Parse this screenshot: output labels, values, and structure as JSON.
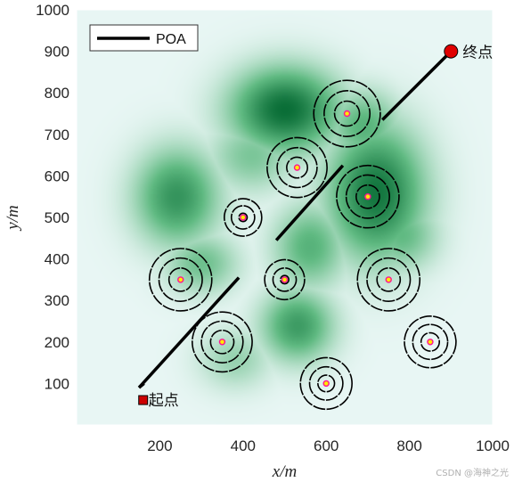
{
  "chart_data": {
    "type": "line",
    "xlabel": "x/m",
    "ylabel": "y/m",
    "xlim": [
      0,
      1000
    ],
    "ylim": [
      0,
      1000
    ],
    "x_ticks": [
      200,
      400,
      600,
      800,
      1000
    ],
    "y_ticks": [
      100,
      200,
      300,
      400,
      500,
      600,
      700,
      800,
      900,
      1000
    ],
    "grid": false,
    "legend_position": "top-left",
    "series": [
      {
        "name": "POA",
        "color": "#000000",
        "segments": [
          [
            [
              150,
              90
            ],
            [
              162,
              100
            ]
          ],
          [
            [
              150,
              90
            ],
            [
              390,
              355
            ]
          ],
          [
            [
              480,
              445
            ],
            [
              640,
              625
            ]
          ],
          [
            [
              735,
              735
            ],
            [
              900,
              900
            ]
          ]
        ]
      }
    ],
    "start": {
      "x": 160,
      "y": 60,
      "label": "起点",
      "color": "#cc0000",
      "marker": "square"
    },
    "end": {
      "x": 900,
      "y": 900,
      "label": "终点",
      "color": "#e00000",
      "marker": "circle"
    },
    "obstacles": [
      {
        "x": 650,
        "y": 750,
        "rings": [
          30,
          55,
          80
        ]
      },
      {
        "x": 530,
        "y": 620,
        "rings": [
          25,
          48,
          72
        ]
      },
      {
        "x": 700,
        "y": 550,
        "rings": [
          28,
          52,
          75
        ]
      },
      {
        "x": 400,
        "y": 500,
        "rings": [
          10,
          28,
          45
        ]
      },
      {
        "x": 250,
        "y": 350,
        "rings": [
          28,
          52,
          75
        ]
      },
      {
        "x": 500,
        "y": 350,
        "rings": [
          10,
          28,
          48
        ]
      },
      {
        "x": 750,
        "y": 350,
        "rings": [
          28,
          52,
          75
        ]
      },
      {
        "x": 350,
        "y": 200,
        "rings": [
          28,
          50,
          72
        ]
      },
      {
        "x": 850,
        "y": 200,
        "rings": [
          22,
          42,
          62
        ]
      },
      {
        "x": 600,
        "y": 100,
        "rings": [
          20,
          40,
          62
        ]
      }
    ],
    "terrain_peaks": [
      {
        "x": 500,
        "y": 760,
        "sx": 90,
        "sy": 70,
        "h": 1.0
      },
      {
        "x": 720,
        "y": 560,
        "sx": 80,
        "sy": 110,
        "h": 0.95
      },
      {
        "x": 240,
        "y": 550,
        "sx": 70,
        "sy": 80,
        "h": 0.75
      },
      {
        "x": 530,
        "y": 240,
        "sx": 60,
        "sy": 60,
        "h": 0.7
      },
      {
        "x": 300,
        "y": 390,
        "sx": 60,
        "sy": 50,
        "h": 0.45
      },
      {
        "x": 560,
        "y": 430,
        "sx": 60,
        "sy": 70,
        "h": 0.55
      },
      {
        "x": 420,
        "y": 650,
        "sx": 70,
        "sy": 60,
        "h": 0.4
      },
      {
        "x": 380,
        "y": 160,
        "sx": 60,
        "sy": 50,
        "h": 0.3
      },
      {
        "x": 690,
        "y": 720,
        "sx": 60,
        "sy": 60,
        "h": 0.55
      },
      {
        "x": 780,
        "y": 460,
        "sx": 60,
        "sy": 60,
        "h": 0.5
      }
    ]
  },
  "watermark": "CSDN @海神之光"
}
